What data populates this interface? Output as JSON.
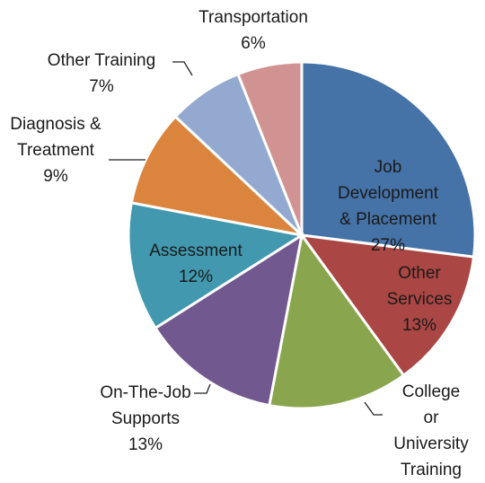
{
  "chart_data": {
    "type": "pie",
    "categories": [
      "Job Development\n& Placement",
      "Other\nServices",
      "College or\nUniversity\nTraining",
      "On-The-Job\nSupports",
      "Assessment",
      "Diagnosis &\nTreatment",
      "Other Training",
      "Transportation"
    ],
    "values": [
      27,
      13,
      13,
      13,
      12,
      9,
      7,
      6
    ],
    "value_labels": [
      "27%",
      "13%",
      null,
      "13%",
      "12%",
      "9%",
      "7%",
      "6%"
    ],
    "colors": [
      "#4572a7",
      "#aa4643",
      "#89a54e",
      "#71588f",
      "#4198af",
      "#db843d",
      "#93a9cf",
      "#d19392"
    ]
  }
}
